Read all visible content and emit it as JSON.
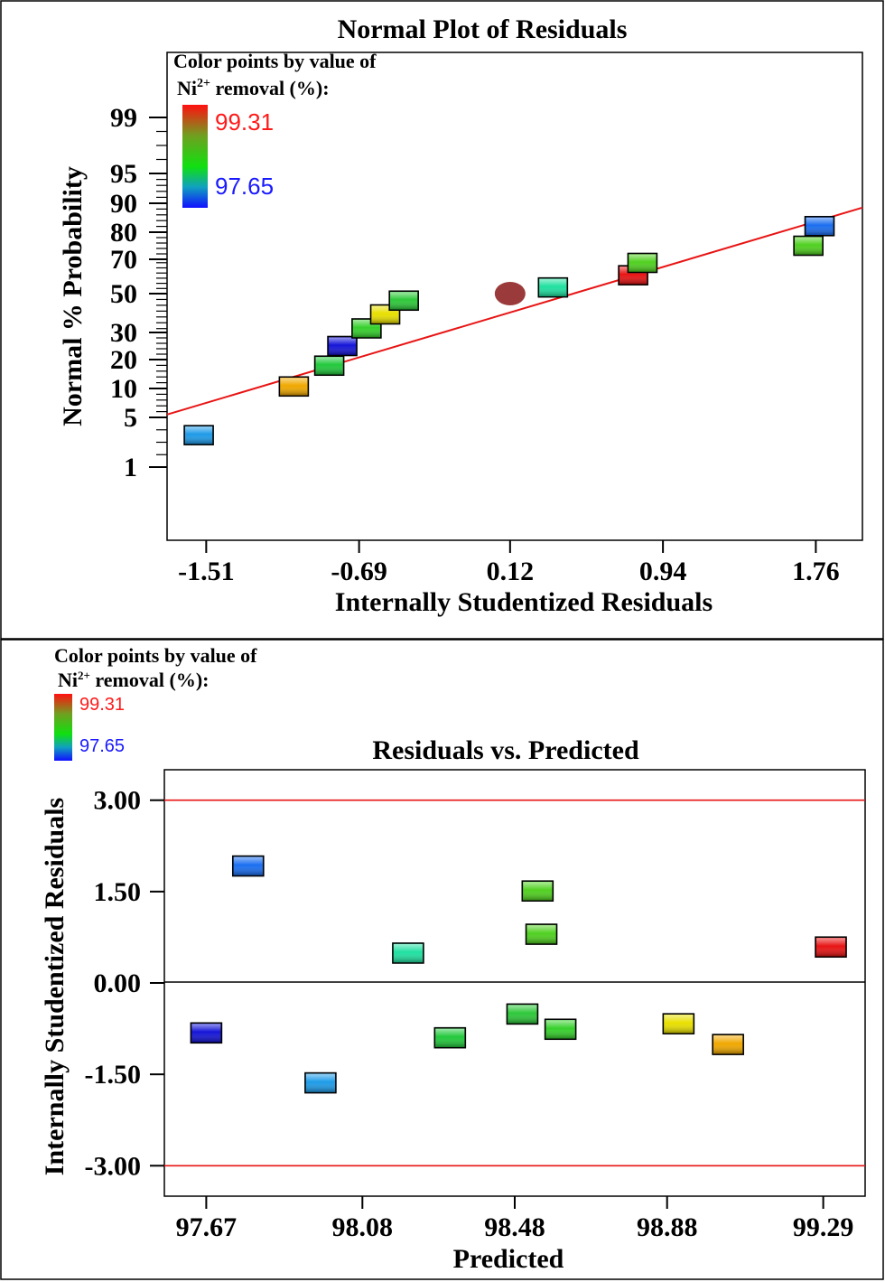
{
  "chart_data": [
    {
      "type": "scatter",
      "title": "Normal Plot of Residuals",
      "xlabel": "Internally Studentized Residuals",
      "ylabel": "Normal % Probability",
      "x_ticks": [
        "-1.51",
        "-0.69",
        "0.12",
        "0.94",
        "1.76"
      ],
      "xlim": [
        -1.72,
        2.01
      ],
      "y_ticks": [
        "1",
        "5",
        "10",
        "20",
        "30",
        "50",
        "70",
        "80",
        "90",
        "95",
        "99"
      ],
      "legend": {
        "title_line1": "Color points by value of",
        "title_ni": "Ni",
        "title_sup": "2+",
        "title_rest": " removal (%):",
        "max_label": "99.31",
        "min_label": "97.65",
        "max_color": "#ff1a1a",
        "min_color": "#1a1aff"
      },
      "points": [
        {
          "x": -1.55,
          "p": 3.57,
          "color": "#1e9be8"
        },
        {
          "x": -1.04,
          "p": 10.7,
          "color": "#f0a800"
        },
        {
          "x": -0.85,
          "p": 17.9,
          "color": "#22c83c"
        },
        {
          "x": -0.78,
          "p": 25.0,
          "color": "#1515d8"
        },
        {
          "x": -0.65,
          "p": 32.1,
          "color": "#36d02c"
        },
        {
          "x": -0.55,
          "p": 39.3,
          "color": "#e8e000"
        },
        {
          "x": -0.45,
          "p": 46.4,
          "color": "#2ec83a"
        },
        {
          "x": 0.35,
          "p": 53.6,
          "color": "#20e0a0"
        },
        {
          "x": 0.78,
          "p": 60.7,
          "color": "#e81414"
        },
        {
          "x": 0.83,
          "p": 67.9,
          "color": "#50d020"
        },
        {
          "x": 1.72,
          "p": 75.0,
          "color": "#50d020"
        },
        {
          "x": 1.78,
          "p": 82.1,
          "color": "#1a6ef0"
        }
      ],
      "center_point": {
        "x": 0.12,
        "p": 50,
        "color": "#9b3a3a"
      },
      "fit_line": {
        "x1": -1.72,
        "p1": 5.5,
        "x2": 2.01,
        "p2": 88.5,
        "color": "#e81414"
      }
    },
    {
      "type": "scatter",
      "title": "Residuals vs. Predicted",
      "xlabel": "Predicted",
      "ylabel": "Internally Studentized Residuals",
      "x_ticks": [
        "97.67",
        "98.08",
        "98.48",
        "98.88",
        "99.29"
      ],
      "xlim": [
        97.56,
        99.4
      ],
      "y_ticks": [
        "3.00",
        "1.50",
        "0.00",
        "-1.50",
        "-3.00"
      ],
      "ylim": [
        -3.5,
        3.5
      ],
      "legend": {
        "title_line1": "Color points by value of",
        "title_ni": "Ni",
        "title_sup": "2+",
        "title_rest": " removal (%):",
        "max_label": "99.31",
        "min_label": "97.65",
        "max_color": "#ff1a1a",
        "min_color": "#1a1aff"
      },
      "limit_lines": [
        3.0,
        -3.0
      ],
      "limit_color": "#e81414",
      "points": [
        {
          "x": 97.67,
          "y": -0.82,
          "color": "#1515d8"
        },
        {
          "x": 97.78,
          "y": 1.92,
          "color": "#1a6ef0"
        },
        {
          "x": 97.97,
          "y": -1.64,
          "color": "#1e9be8"
        },
        {
          "x": 98.2,
          "y": 0.49,
          "color": "#20e0a0"
        },
        {
          "x": 98.31,
          "y": -0.9,
          "color": "#22c83c"
        },
        {
          "x": 98.5,
          "y": -0.51,
          "color": "#2ec83a"
        },
        {
          "x": 98.54,
          "y": 1.51,
          "color": "#50d020"
        },
        {
          "x": 98.55,
          "y": 0.8,
          "color": "#50d020"
        },
        {
          "x": 98.6,
          "y": -0.76,
          "color": "#36d02c"
        },
        {
          "x": 98.91,
          "y": -0.67,
          "color": "#e8e000"
        },
        {
          "x": 99.04,
          "y": -1.01,
          "color": "#f0a800"
        },
        {
          "x": 99.31,
          "y": 0.59,
          "color": "#e81414"
        }
      ]
    }
  ]
}
